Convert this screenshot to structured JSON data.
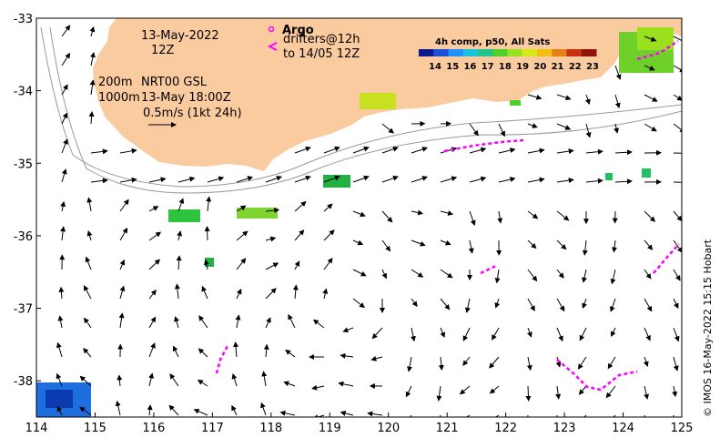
{
  "map": {
    "lon_range": [
      114,
      125
    ],
    "lat_range": [
      -38.5,
      -33
    ],
    "x_ticks": [
      "114",
      "115",
      "116",
      "117",
      "118",
      "119",
      "120",
      "121",
      "122",
      "123",
      "124",
      "125"
    ],
    "y_ticks": [
      "-33",
      "-34",
      "-35",
      "-36",
      "-37",
      "-38"
    ],
    "land_color": "#fbcba0",
    "ocean_color": "#ffffff"
  },
  "annotations": {
    "date": "13-May-2022",
    "time": "12Z",
    "depth_line1": "200m",
    "depth_line2": "1000m",
    "source": "NRT00 GSL",
    "valid": "13-May 18:00Z",
    "scale": "0.5m/s (1kt 24h)"
  },
  "legend": {
    "argo_label": "Argo",
    "drifters_label": "drifters@12h",
    "drifters_to": "to 14/05 12Z",
    "argo_color": "#ff00ff"
  },
  "colorbar": {
    "title": "4h comp, p50, All Sats",
    "labels": [
      "14",
      "15",
      "16",
      "17",
      "18",
      "19",
      "20",
      "21",
      "22",
      "23"
    ],
    "colors": [
      "#0a1a8c",
      "#1c4fd6",
      "#1e90ff",
      "#19c3e0",
      "#22c48a",
      "#4fcf2a",
      "#9be01e",
      "#d8e81a",
      "#f2c014",
      "#e6801a",
      "#c83214",
      "#8c1408"
    ]
  },
  "credit": "© IMOS 16-May-2022 15:15 Hobart"
}
